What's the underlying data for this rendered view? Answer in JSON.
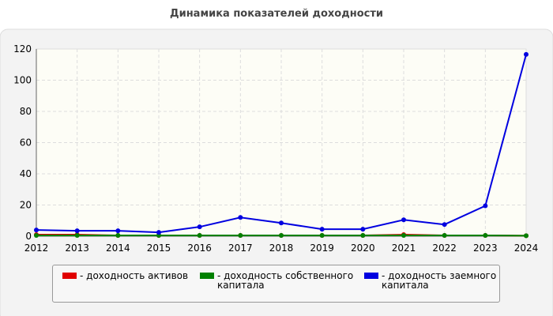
{
  "chart_data": {
    "type": "line",
    "title": "Динамика показателей доходности",
    "x": [
      2012,
      2013,
      2014,
      2015,
      2016,
      2017,
      2018,
      2019,
      2020,
      2021,
      2022,
      2023,
      2024
    ],
    "series": [
      {
        "name": "- доходность активов",
        "color": "#e00000",
        "values": [
          1,
          1,
          0.5,
          0.5,
          0.5,
          0.5,
          0.5,
          0.5,
          0.5,
          1,
          0.5,
          0.5,
          0.3
        ]
      },
      {
        "name": "- доходность собственного капитала",
        "color": "#008000",
        "values": [
          0.5,
          0.5,
          0.5,
          0.5,
          0.5,
          0.5,
          0.5,
          0.5,
          0.5,
          0.5,
          0.5,
          0.5,
          0.3
        ]
      },
      {
        "name": "- доходность заемного капитала",
        "color": "#0000e0",
        "values": [
          4,
          3.5,
          3.5,
          2.5,
          6,
          12,
          8.5,
          4.5,
          4.5,
          10.5,
          7.5,
          19.5,
          116.5
        ]
      }
    ],
    "xlim": [
      2012,
      2024
    ],
    "xticks": [
      2012,
      2013,
      2014,
      2015,
      2016,
      2017,
      2018,
      2019,
      2020,
      2021,
      2022,
      2023,
      2024
    ],
    "ylim": [
      0,
      120
    ],
    "yticks": [
      0,
      20,
      40,
      60,
      80,
      100,
      120
    ],
    "grid": true,
    "legend": "bottom"
  }
}
